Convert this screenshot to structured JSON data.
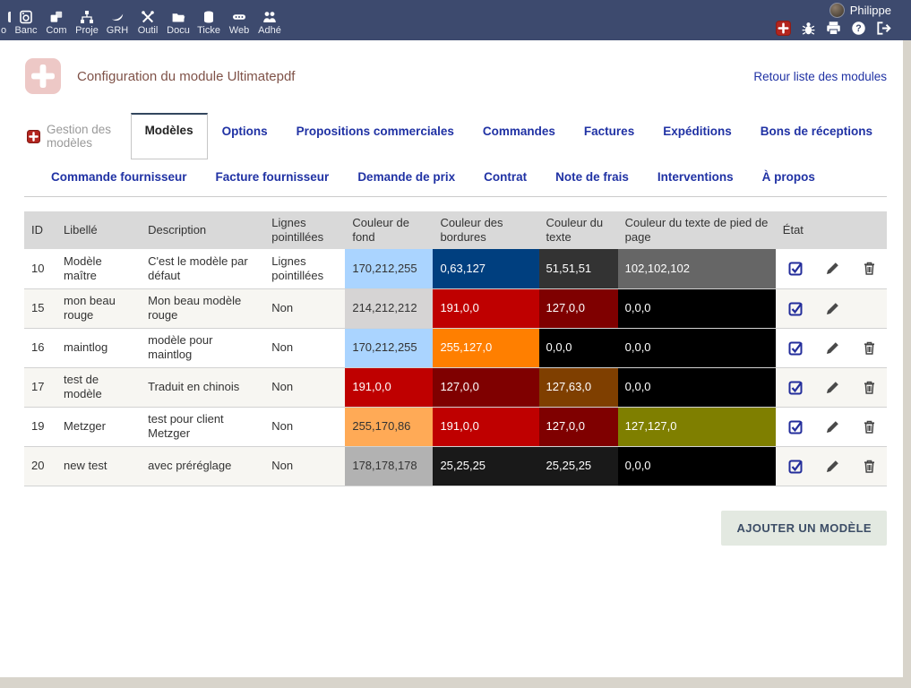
{
  "topbar": {
    "user_name": "Philippe",
    "menu_items": [
      {
        "label": "o",
        "icon": "clipped-icon",
        "clipped": true
      },
      {
        "label": "Banc",
        "icon": "bank-icon"
      },
      {
        "label": "Com",
        "icon": "commerce-icon"
      },
      {
        "label": "Proje",
        "icon": "projects-icon"
      },
      {
        "label": "GRH",
        "icon": "hrm-icon"
      },
      {
        "label": "Outil",
        "icon": "tools-icon"
      },
      {
        "label": "Docu",
        "icon": "documents-icon"
      },
      {
        "label": "Ticke",
        "icon": "ticket-icon"
      },
      {
        "label": "Web",
        "icon": "website-icon"
      },
      {
        "label": "Adhé",
        "icon": "members-icon"
      }
    ],
    "quick_icons": [
      {
        "name": "add-module-icon"
      },
      {
        "name": "bug-icon"
      },
      {
        "name": "print-icon"
      },
      {
        "name": "help-icon"
      },
      {
        "name": "logout-icon"
      }
    ]
  },
  "header": {
    "title": "Configuration du module Ultimatepdf",
    "back_link": "Retour liste des modules",
    "logo": "ultimatepdf-swiss-cross-logo"
  },
  "tabs": {
    "caption": "Gestion des modèles",
    "row1": [
      {
        "label": "Modèles",
        "active": true
      },
      {
        "label": "Options"
      },
      {
        "label": "Propositions commerciales"
      },
      {
        "label": "Commandes"
      },
      {
        "label": "Factures"
      },
      {
        "label": "Expéditions"
      },
      {
        "label": "Bons de réceptions"
      }
    ],
    "row2": [
      {
        "label": "Commande fournisseur"
      },
      {
        "label": "Facture fournisseur"
      },
      {
        "label": "Demande de prix"
      },
      {
        "label": "Contrat"
      },
      {
        "label": "Note de frais"
      },
      {
        "label": "Interventions"
      },
      {
        "label": "À propos"
      }
    ]
  },
  "table": {
    "headers": [
      "ID",
      "Libellé",
      "Description",
      "Lignes pointillées",
      "Couleur de fond",
      "Couleur des bordures",
      "Couleur du texte",
      "Couleur du texte de pied de page",
      "État"
    ],
    "rows": [
      {
        "id": "10",
        "libelle": "Modèle maître",
        "description": "C'est le modèle par défaut",
        "lignes": "Lignes pointillées",
        "bg": "170,212,255",
        "borders": "0,63,127",
        "text": "51,51,51",
        "footer_text": "102,102,102",
        "enabled": true,
        "deletable": true
      },
      {
        "id": "15",
        "libelle": "mon beau rouge",
        "description": "Mon beau modèle rouge",
        "lignes": "Non",
        "bg": "214,212,212",
        "borders": "191,0,0",
        "text": "127,0,0",
        "footer_text": "0,0,0",
        "enabled": true,
        "deletable": false
      },
      {
        "id": "16",
        "libelle": "maintlog",
        "description": "modèle pour maintlog",
        "lignes": "Non",
        "bg": "170,212,255",
        "borders": "255,127,0",
        "text": "0,0,0",
        "footer_text": "0,0,0",
        "enabled": true,
        "deletable": true
      },
      {
        "id": "17",
        "libelle": "test de modèle",
        "description": "Traduit en chinois",
        "lignes": "Non",
        "bg": "191,0,0",
        "borders": "127,0,0",
        "text": "127,63,0",
        "footer_text": "0,0,0",
        "enabled": true,
        "deletable": true
      },
      {
        "id": "19",
        "libelle": "Metzger",
        "description": "test pour client Metzger",
        "lignes": "Non",
        "bg": "255,170,86",
        "borders": "191,0,0",
        "text": "127,0,0",
        "footer_text": "127,127,0",
        "enabled": true,
        "deletable": true
      },
      {
        "id": "20",
        "libelle": "new test",
        "description": "avec préréglage",
        "lignes": "Non",
        "bg": "178,178,178",
        "borders": "25,25,25",
        "text": "25,25,25",
        "footer_text": "0,0,0",
        "enabled": true,
        "deletable": true
      }
    ]
  },
  "footer": {
    "add_button": "AJOUTER UN MODÈLE"
  },
  "colors": {
    "topbar_bg": "#3d4a6e",
    "accent_link": "#2032a4",
    "title_text": "#7f5248",
    "table_header_bg": "#d9d9d9",
    "checkbox_blue": "#232d9b",
    "module_red": "#b3251e",
    "button_bg": "#e3e9e1",
    "button_text": "#3c4d66"
  }
}
